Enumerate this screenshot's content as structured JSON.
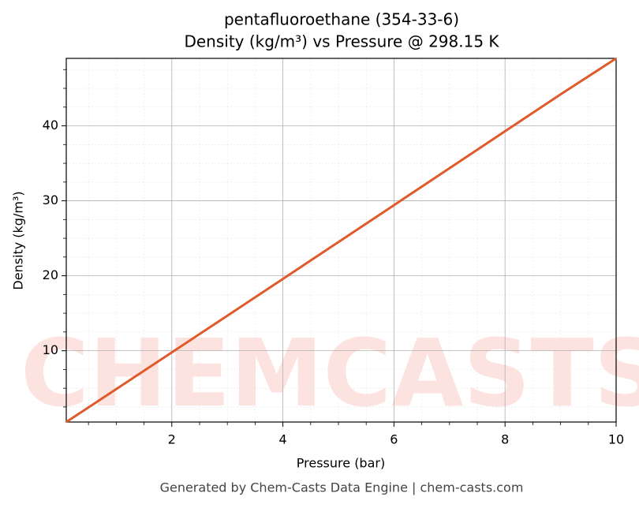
{
  "chart_data": {
    "type": "line",
    "title": "pentafluoroethane (354-33-6)",
    "subtitle": "Density (kg/m³) vs Pressure @ 298.15 K",
    "x_label": "Pressure (bar)",
    "y_label": "Density (kg/m³)",
    "footer": "Generated by Chem-Casts Data Engine | chem-casts.com",
    "watermark": "CHEMCASTS",
    "x": [
      0.1,
      1,
      2,
      3,
      4,
      5,
      6,
      7,
      8,
      9,
      10
    ],
    "series": [
      {
        "name": "Density",
        "color": "#e05a2b",
        "values": [
          0.49,
          4.88,
          9.78,
          14.67,
          19.58,
          24.5,
          29.42,
          34.35,
          39.28,
          44.2,
          49.0
        ]
      }
    ],
    "xlim": [
      0.1,
      10
    ],
    "ylim": [
      0.49,
      49.0
    ],
    "xticks": [
      2,
      4,
      6,
      8,
      10
    ],
    "yticks": [
      10,
      20,
      30,
      40
    ],
    "xminorticks": [
      0.5,
      1,
      1.5,
      2.5,
      3,
      3.5,
      4.5,
      5,
      5.5,
      6.5,
      7,
      7.5,
      8.5,
      9,
      9.5
    ],
    "yminorticks": [
      2.5,
      5,
      7.5,
      12.5,
      15,
      17.5,
      22.5,
      25,
      27.5,
      32.5,
      35,
      37.5,
      42.5,
      45,
      47.5
    ],
    "grid": true
  }
}
